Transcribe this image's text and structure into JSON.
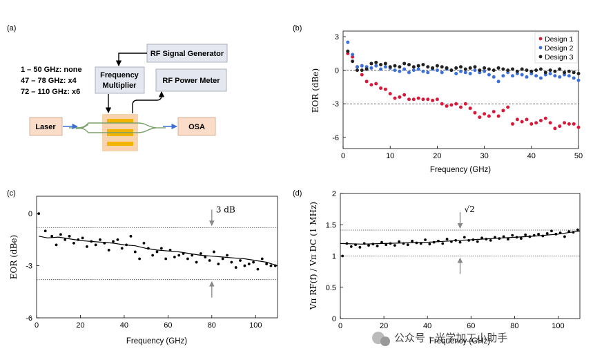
{
  "panel_a": {
    "label": "(a)",
    "rf_signal_generator": "RF Signal Generator",
    "frequency_multiplier": [
      "Frequency",
      "Multiplier"
    ],
    "rf_power_meter": "RF Power Meter",
    "laser": "Laser",
    "osa": "OSA",
    "multiplier_table": [
      "1 – 50 GHz: none",
      "47 – 78 GHz: x4",
      "72 – 110 GHz: x6"
    ]
  },
  "watermark": "公众号 · 光学加工小助手",
  "colors": {
    "design1": "#d8193a",
    "design2": "#3c6fd8",
    "design3": "#222222",
    "box_fill": "#e4e7ef",
    "laser_fill": "#fbdcc8",
    "osa_fill": "#fbdcc8",
    "chip_fill": "#f6c99a",
    "electrode": "#f2b400",
    "waveguide": "#7aa06a",
    "arrow_blue": "#3c6fd8"
  },
  "chart_data": [
    {
      "panel": "(b)",
      "type": "scatter",
      "xlabel": "Frequency (GHz)",
      "ylabel": "EOR (dBe)",
      "xlim": [
        0,
        50
      ],
      "ylim": [
        -7,
        3.5
      ],
      "xticks": [
        "0",
        "10",
        "20",
        "30",
        "40",
        "50"
      ],
      "yticks": [
        "3",
        "0",
        "-3",
        "-6"
      ],
      "reference_lines": [
        0,
        -3
      ],
      "legend": [
        "Design 1",
        "Design 2",
        "Design 3"
      ],
      "legend_position": "top-right",
      "series": [
        {
          "name": "Design 1",
          "x": [
            1,
            2,
            3,
            4,
            5,
            6,
            7,
            8,
            9,
            10,
            11,
            12,
            13,
            14,
            15,
            16,
            17,
            18,
            19,
            20,
            21,
            22,
            23,
            24,
            25,
            26,
            27,
            28,
            29,
            30,
            31,
            32,
            33,
            34,
            35,
            36,
            37,
            38,
            39,
            40,
            41,
            42,
            43,
            44,
            45,
            46,
            47,
            48,
            49,
            50
          ],
          "y": [
            1.5,
            1.2,
            0.3,
            -0.4,
            -1.0,
            -1.3,
            -1.2,
            -1.6,
            -1.7,
            -2.1,
            -2.5,
            -2.4,
            -2.2,
            -2.6,
            -2.6,
            -2.5,
            -2.6,
            -2.6,
            -2.7,
            -2.6,
            -3.0,
            -3.2,
            -3.1,
            -3.0,
            -3.3,
            -3.0,
            -3.4,
            -3.8,
            -4.2,
            -3.9,
            -4.1,
            -3.7,
            -4.1,
            -3.6,
            -3.3,
            -4.8,
            -4.4,
            -4.6,
            -4.4,
            -4.8,
            -4.7,
            -4.5,
            -4.3,
            -4.7,
            -5.2,
            -5.0,
            -4.7,
            -4.8,
            -4.8,
            -5.1
          ]
        },
        {
          "name": "Design 2",
          "x": [
            1,
            2,
            3,
            4,
            5,
            6,
            7,
            8,
            9,
            10,
            11,
            12,
            13,
            14,
            15,
            16,
            17,
            18,
            19,
            20,
            21,
            22,
            23,
            24,
            25,
            26,
            27,
            28,
            29,
            30,
            31,
            32,
            33,
            34,
            35,
            36,
            37,
            38,
            39,
            40,
            41,
            42,
            43,
            44,
            45,
            46,
            47,
            48,
            49,
            50
          ],
          "y": [
            2.5,
            1.4,
            0.3,
            0.4,
            0.3,
            0.2,
            0.4,
            0.1,
            0.3,
            0.2,
            0.0,
            -0.1,
            0.1,
            -0.2,
            0.0,
            0.1,
            -0.1,
            -0.2,
            0.1,
            0.0,
            -0.2,
            0.1,
            0.0,
            -0.3,
            -0.1,
            -0.2,
            -0.3,
            0.0,
            -0.2,
            -0.1,
            -0.4,
            -0.6,
            -1.0,
            -0.5,
            -0.2,
            -0.5,
            -0.3,
            -0.4,
            -0.6,
            -0.3,
            -0.5,
            -0.7,
            -0.4,
            -0.3,
            -0.5,
            -0.6,
            -0.4,
            -0.5,
            -0.7,
            -0.9
          ]
        },
        {
          "name": "Design 3",
          "x": [
            1,
            2,
            3,
            4,
            5,
            6,
            7,
            8,
            9,
            10,
            11,
            12,
            13,
            14,
            15,
            16,
            17,
            18,
            19,
            20,
            21,
            22,
            23,
            24,
            25,
            26,
            27,
            28,
            29,
            30,
            31,
            32,
            33,
            34,
            35,
            36,
            37,
            38,
            39,
            40,
            41,
            42,
            43,
            44,
            45,
            46,
            47,
            48,
            49,
            50
          ],
          "y": [
            1.7,
            0.8,
            0.0,
            0.0,
            0.1,
            0.6,
            0.7,
            0.5,
            0.6,
            0.3,
            0.4,
            0.3,
            0.6,
            0.5,
            0.3,
            0.4,
            0.5,
            0.3,
            0.2,
            0.4,
            0.3,
            0.2,
            0.0,
            0.2,
            0.3,
            0.1,
            0.2,
            0.3,
            0.0,
            0.2,
            0.1,
            0.0,
            0.2,
            0.1,
            0.0,
            0.1,
            -0.1,
            0.1,
            0.0,
            -0.1,
            0.0,
            0.1,
            -0.2,
            0.0,
            -0.1,
            0.1,
            -0.2,
            -0.1,
            -0.2,
            -0.3
          ]
        }
      ]
    },
    {
      "panel": "(c)",
      "type": "scatter",
      "xlabel": "Frequency (GHz)",
      "ylabel": "EOR (dBe)",
      "xlim": [
        0,
        110
      ],
      "ylim": [
        -6,
        1
      ],
      "xticks": [
        "0",
        "20",
        "40",
        "60",
        "80",
        "100"
      ],
      "yticks": [
        "0",
        "-3",
        "-6"
      ],
      "reference_lines": [
        -0.8,
        -3.8
      ],
      "annotation": "3 dB",
      "annotation_x": 80,
      "x": [
        1,
        4,
        7,
        9,
        11,
        13,
        15,
        17,
        19,
        21,
        23,
        25,
        27,
        29,
        31,
        33,
        35,
        37,
        39,
        41,
        43,
        45,
        47,
        49,
        51,
        53,
        55,
        57,
        59,
        61,
        63,
        65,
        67,
        69,
        71,
        73,
        75,
        77,
        79,
        81,
        83,
        85,
        87,
        89,
        91,
        93,
        95,
        97,
        99,
        101,
        103,
        105,
        107,
        109
      ],
      "y": [
        0.0,
        -1.0,
        -1.3,
        -1.8,
        -1.2,
        -1.5,
        -1.3,
        -1.7,
        -1.5,
        -1.4,
        -1.9,
        -1.6,
        -1.8,
        -1.5,
        -1.7,
        -2.1,
        -1.6,
        -1.5,
        -2.0,
        -1.8,
        -1.3,
        -2.2,
        -2.6,
        -1.7,
        -2.0,
        -2.4,
        -2.2,
        -2.0,
        -2.6,
        -2.1,
        -2.5,
        -2.4,
        -2.3,
        -2.6,
        -2.4,
        -2.8,
        -2.3,
        -2.5,
        -2.7,
        -2.2,
        -2.9,
        -2.6,
        -2.4,
        -2.8,
        -3.1,
        -2.7,
        -3.0,
        -2.9,
        -2.8,
        -3.2,
        -2.6,
        -2.9,
        -3.0,
        -3.0
      ],
      "fit_x": [
        1,
        5,
        10,
        15,
        20,
        25,
        30,
        35,
        40,
        45,
        50,
        55,
        60,
        65,
        70,
        75,
        80,
        85,
        90,
        95,
        100,
        105,
        110
      ],
      "fit_y": [
        -1.3,
        -1.4,
        -1.35,
        -1.45,
        -1.55,
        -1.6,
        -1.65,
        -1.7,
        -1.8,
        -1.85,
        -2.0,
        -2.1,
        -2.15,
        -2.2,
        -2.3,
        -2.4,
        -2.45,
        -2.5,
        -2.55,
        -2.6,
        -2.7,
        -2.8,
        -3.0
      ]
    },
    {
      "panel": "(d)",
      "type": "scatter",
      "xlabel": "Frequency (GHz)",
      "ylabel": "Vπ RF(f) / Vπ DC (1 MHz)",
      "xlim": [
        0,
        110
      ],
      "ylim": [
        0,
        2
      ],
      "xticks": [
        "0",
        "20",
        "40",
        "60",
        "80",
        "100"
      ],
      "yticks": [
        "0",
        "0.5",
        "1",
        "1.5",
        "2"
      ],
      "reference_lines": [
        1.0,
        1.414
      ],
      "annotation": "√2",
      "annotation_x": 55,
      "x": [
        1,
        3,
        5,
        7,
        9,
        11,
        13,
        15,
        17,
        19,
        21,
        23,
        25,
        27,
        29,
        31,
        33,
        35,
        37,
        39,
        41,
        43,
        45,
        47,
        49,
        51,
        53,
        55,
        57,
        59,
        61,
        63,
        65,
        67,
        69,
        71,
        73,
        75,
        77,
        79,
        81,
        83,
        85,
        87,
        89,
        91,
        93,
        95,
        97,
        99,
        101,
        103,
        105,
        107,
        109
      ],
      "y": [
        1.0,
        1.2,
        1.15,
        1.18,
        1.14,
        1.2,
        1.17,
        1.19,
        1.16,
        1.22,
        1.18,
        1.2,
        1.17,
        1.23,
        1.2,
        1.18,
        1.24,
        1.21,
        1.2,
        1.26,
        1.19,
        1.22,
        1.24,
        1.2,
        1.27,
        1.23,
        1.25,
        1.22,
        1.3,
        1.25,
        1.26,
        1.23,
        1.29,
        1.27,
        1.25,
        1.3,
        1.28,
        1.31,
        1.27,
        1.33,
        1.3,
        1.28,
        1.34,
        1.31,
        1.33,
        1.35,
        1.32,
        1.36,
        1.4,
        1.35,
        1.37,
        1.31,
        1.39,
        1.38,
        1.42
      ],
      "fit_x": [
        0,
        10,
        20,
        30,
        40,
        50,
        60,
        70,
        80,
        90,
        100,
        110
      ],
      "fit_y": [
        1.2,
        1.19,
        1.2,
        1.21,
        1.22,
        1.24,
        1.26,
        1.28,
        1.3,
        1.32,
        1.35,
        1.4
      ]
    }
  ]
}
